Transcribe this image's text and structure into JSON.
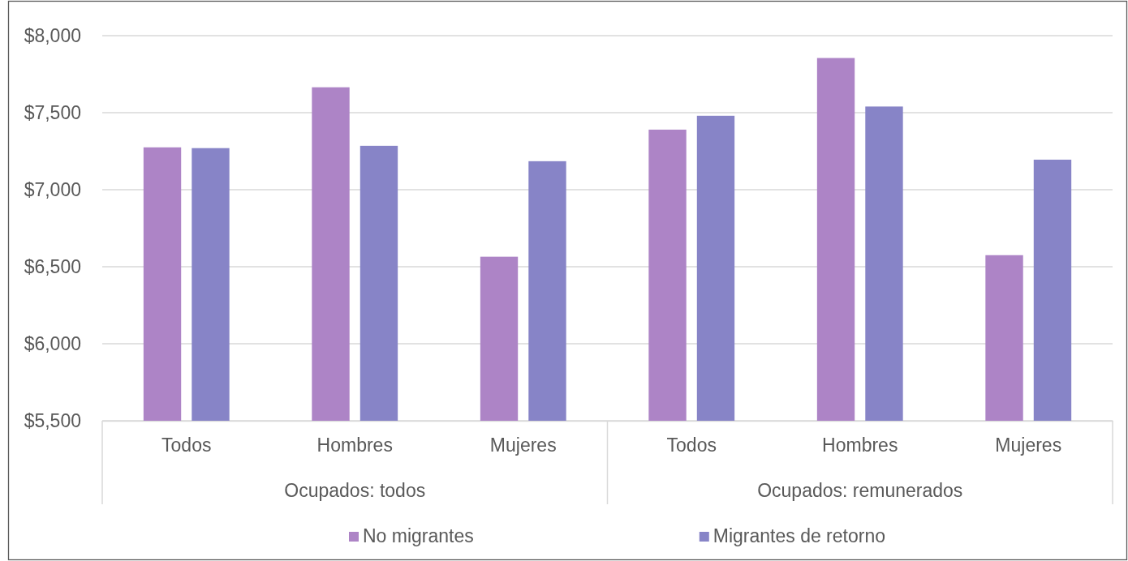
{
  "chart_data": {
    "type": "bar",
    "categories": [
      "Todos",
      "Hombres",
      "Mujeres",
      "Todos",
      "Hombres",
      "Mujeres"
    ],
    "series": [
      {
        "name": "No migrantes",
        "color": "#ad84c6",
        "values": [
          7275,
          7665,
          6565,
          7390,
          7855,
          6575
        ]
      },
      {
        "name": "Migrantes de retorno",
        "color": "#8784c7",
        "values": [
          7270,
          7285,
          7185,
          7480,
          7540,
          7195
        ]
      }
    ],
    "ylim": [
      5500,
      8000
    ],
    "yticks": [
      {
        "value": 5500,
        "label": "$5,500"
      },
      {
        "value": 6000,
        "label": "$6,000"
      },
      {
        "value": 6500,
        "label": "$6,500"
      },
      {
        "value": 7000,
        "label": "$7,000"
      },
      {
        "value": 7500,
        "label": "$7,500"
      },
      {
        "value": 8000,
        "label": "$8,000"
      }
    ],
    "grid": "y",
    "legend": "bottom",
    "annotations": [
      "Ocupados: todos",
      "Ocupados: remunerados"
    ]
  }
}
